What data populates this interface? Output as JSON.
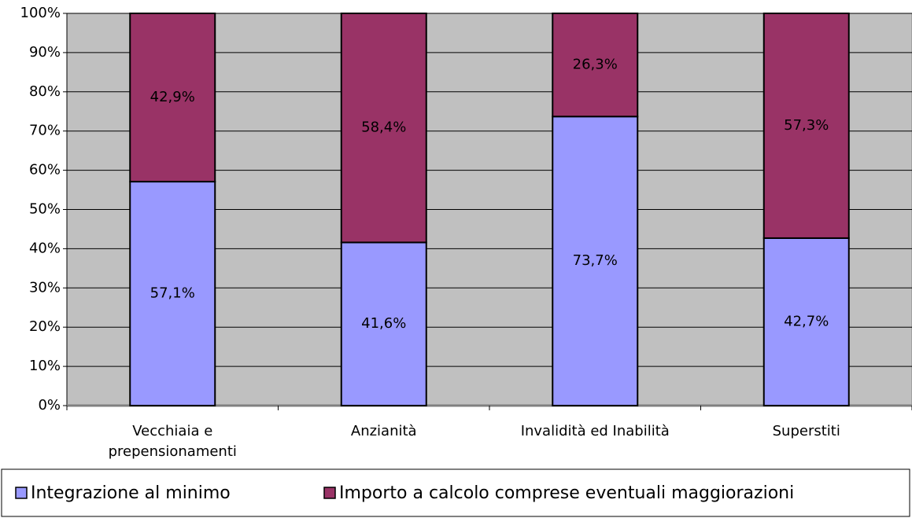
{
  "chart_data": {
    "type": "stacked_bar_100",
    "categories": [
      "Vecchiaia e prepensionamenti",
      "Anzianità",
      "Invalidità ed Inabilità",
      "Superstiti"
    ],
    "series": [
      {
        "name": "Integrazione al minimo",
        "color": "#9999ff",
        "values": [
          57.1,
          41.6,
          73.7,
          42.7
        ],
        "value_labels": [
          "57,1%",
          "41,6%",
          "73,7%",
          "42,7%"
        ]
      },
      {
        "name": "Importo a calcolo comprese eventuali maggiorazioni",
        "color": "#993366",
        "values": [
          42.9,
          58.4,
          26.3,
          57.3
        ],
        "value_labels": [
          "42,9%",
          "58,4%",
          "26,3%",
          "57,3%"
        ]
      }
    ],
    "ylim": [
      0,
      100
    ],
    "yticks": [
      {
        "value": 0,
        "label": "0%"
      },
      {
        "value": 10,
        "label": "10%"
      },
      {
        "value": 20,
        "label": "20%"
      },
      {
        "value": 30,
        "label": "30%"
      },
      {
        "value": 40,
        "label": "40%"
      },
      {
        "value": 50,
        "label": "50%"
      },
      {
        "value": 60,
        "label": "60%"
      },
      {
        "value": 70,
        "label": "70%"
      },
      {
        "value": 80,
        "label": "80%"
      },
      {
        "value": 90,
        "label": "90%"
      },
      {
        "value": 100,
        "label": "100%"
      }
    ],
    "grid": true,
    "legend": "bottom"
  }
}
